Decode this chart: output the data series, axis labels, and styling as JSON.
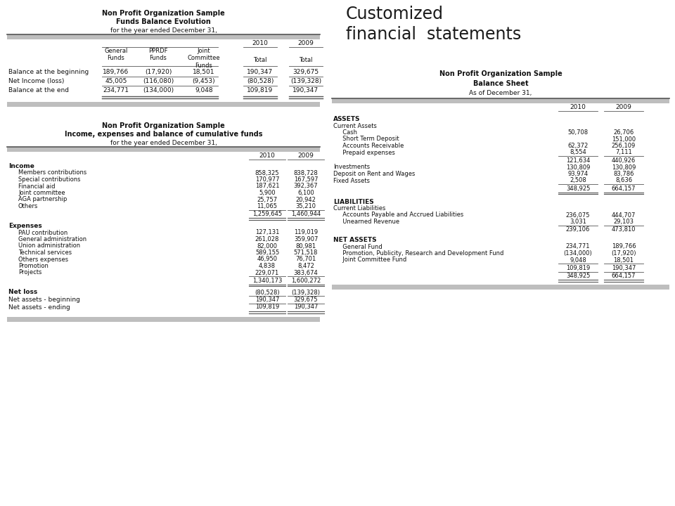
{
  "bg_color": "#ffffff",
  "gray_bar_color": "#bebebe",
  "dark_line_color": "#555555",
  "page_title": "Customized\nfinancial  statements",
  "panel1": {
    "title1": "Non Profit Organization Sample",
    "title2": "Funds Balance Evolution",
    "title3": "for the year ended December 31,",
    "rows": [
      {
        "label": "Balance at the beginning",
        "vals": [
          "189,766",
          "(17,920)",
          "18,501",
          "190,347",
          "329,675"
        ]
      },
      {
        "label": "Net Income (loss)",
        "vals": [
          "45,005",
          "(116,080)",
          "(9,453)",
          "(80,528)",
          "(139,328)"
        ]
      },
      {
        "label": "Balance at the end",
        "vals": [
          "234,771",
          "(134,000)",
          "9,048",
          "109,819",
          "190,347"
        ]
      }
    ]
  },
  "panel2": {
    "title1": "Non Profit Organization Sample",
    "title2": "Income, expenses and balance of cumulative funds",
    "title3": "for the year ended December 31,",
    "sections": [
      {
        "header": "Income",
        "items": [
          {
            "label": "Members contributions",
            "v2010": "858,325",
            "v2009": "838,728"
          },
          {
            "label": "Special contributions",
            "v2010": "170,977",
            "v2009": "167,597"
          },
          {
            "label": "Financial aid",
            "v2010": "187,621",
            "v2009": "392,367"
          },
          {
            "label": "Joint committee",
            "v2010": "5,900",
            "v2009": "6,100"
          },
          {
            "label": "AGA partnership",
            "v2010": "25,757",
            "v2009": "20,942"
          },
          {
            "label": "Others",
            "v2010": "11,065",
            "v2009": "35,210"
          }
        ],
        "total": {
          "v2010": "1,259,645",
          "v2009": "1,460,944"
        }
      },
      {
        "header": "Expenses",
        "items": [
          {
            "label": "PAU contribution",
            "v2010": "127,131",
            "v2009": "119,019"
          },
          {
            "label": "General administration",
            "v2010": "261,028",
            "v2009": "359,907"
          },
          {
            "label": "Union administration",
            "v2010": "82,000",
            "v2009": "80,981"
          },
          {
            "label": "Technical services",
            "v2010": "589,155",
            "v2009": "571,518"
          },
          {
            "label": "Others expenses",
            "v2010": "46,950",
            "v2009": "76,701"
          },
          {
            "label": "Promotion",
            "v2010": "4,838",
            "v2009": "8,472"
          },
          {
            "label": "Projects",
            "v2010": "229,071",
            "v2009": "383,674"
          }
        ],
        "total": {
          "v2010": "1,340,173",
          "v2009": "1,600,272"
        }
      }
    ],
    "bottom_rows": [
      {
        "label": "Net loss",
        "v2010": "(80,528)",
        "v2009": "(139,328)",
        "bold": true
      },
      {
        "label": "Net assets - beginning",
        "v2010": "190,347",
        "v2009": "329,675",
        "bold": false
      },
      {
        "label": "Net assets - ending",
        "v2010": "109,819",
        "v2009": "190,347",
        "bold": false
      }
    ]
  },
  "panel3": {
    "title1": "Non Profit Organization Sample",
    "title2": "Balance Sheet",
    "title3": "As of December 31,",
    "sections": [
      {
        "header": "ASSETS",
        "subheader": "Current Assets",
        "items": [
          {
            "label": "  Cash",
            "v2010": "50,708",
            "v2009": "26,706"
          },
          {
            "label": "  Short Term Deposit",
            "v2010": "",
            "v2009": "151,000"
          },
          {
            "label": "  Accounts Receivable",
            "v2010": "62,372",
            "v2009": "256,109"
          },
          {
            "label": "  Prepaid expenses",
            "v2010": "8,554",
            "v2009": "7,111"
          }
        ],
        "subtotal": {
          "v2010": "121,634",
          "v2009": "440,926"
        },
        "other_items": [
          {
            "label": "Investments",
            "v2010": "130,809",
            "v2009": "130,809"
          },
          {
            "label": "Deposit on Rent and Wages",
            "v2010": "93,974",
            "v2009": "83,786"
          },
          {
            "label": "Fixed Assets",
            "v2010": "2,508",
            "v2009": "8,636"
          }
        ],
        "total": {
          "v2010": "348,925",
          "v2009": "664,157"
        }
      },
      {
        "header": "LIABILITIES",
        "subheader": "Current Liabilities",
        "items": [
          {
            "label": "  Accounts Payable and Accrued Liabilities",
            "v2010": "236,075",
            "v2009": "444,707"
          },
          {
            "label": "  Unearned Revenue",
            "v2010": "3,031",
            "v2009": "29,103"
          }
        ],
        "subtotal": {
          "v2010": "239,106",
          "v2009": "473,810"
        },
        "other_items": [],
        "total": null
      },
      {
        "header": "NET ASSETS",
        "subheader": null,
        "items": [
          {
            "label": "  General Fund",
            "v2010": "234,771",
            "v2009": "189,766"
          },
          {
            "label": "  Promotion, Publicity, Research and Development Fund",
            "v2010": "(134,000)",
            "v2009": "(17,920)"
          },
          {
            "label": "  Joint Committee Fund",
            "v2010": "9,048",
            "v2009": "18,501"
          }
        ],
        "subtotal": {
          "v2010": "109,819",
          "v2009": "190,347"
        },
        "other_items": [],
        "total": {
          "v2010": "348,925",
          "v2009": "664,157"
        }
      }
    ]
  }
}
